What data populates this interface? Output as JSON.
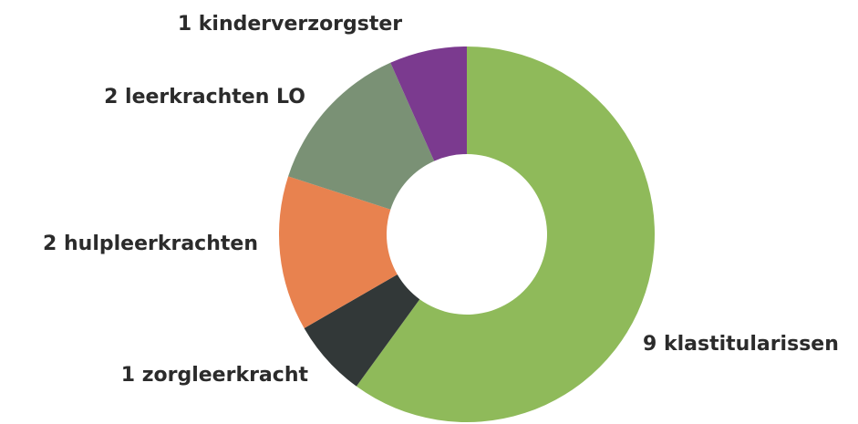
{
  "chart_data": {
    "type": "donut",
    "categories": [
      "9 klastitularissen",
      "1 zorgleerkracht",
      "2 hulpleerkrachten",
      "2 leerkrachten LO",
      "1 kinderverzorgster"
    ],
    "values": [
      9,
      1,
      2,
      2,
      1
    ],
    "colors": [
      "#8fba5a",
      "#323838",
      "#e8824f",
      "#7a9175",
      "#7b3a8f"
    ]
  }
}
